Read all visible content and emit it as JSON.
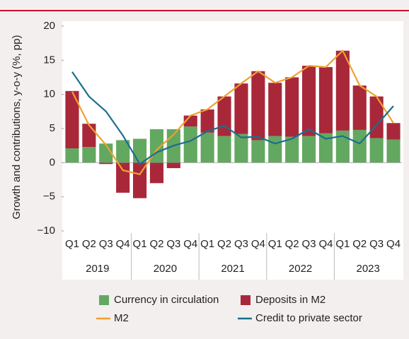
{
  "chart_data": {
    "type": "stacked-bar-line",
    "ylabel": "Growth and contributions, y-o-y (%, pp)",
    "categories": [
      "Q1",
      "Q2",
      "Q3",
      "Q4",
      "Q1",
      "Q2",
      "Q3",
      "Q4",
      "Q1",
      "Q2",
      "Q3",
      "Q4",
      "Q1",
      "Q2",
      "Q3",
      "Q4",
      "Q1",
      "Q2",
      "Q3",
      "Q4"
    ],
    "groups": [
      "2019",
      "2020",
      "2021",
      "2022",
      "2023"
    ],
    "series": [
      {
        "name": "Currency in circulation",
        "kind": "bar",
        "color": "#63a860",
        "values": [
          2.1,
          2.3,
          2.8,
          3.3,
          3.5,
          4.9,
          4.9,
          5.3,
          4.4,
          3.9,
          4.2,
          3.3,
          3.9,
          3.8,
          3.9,
          4.3,
          4.7,
          4.8,
          3.6,
          3.4
        ]
      },
      {
        "name": "Deposits in M2",
        "kind": "bar",
        "color": "#a8283a",
        "values": [
          8.4,
          3.4,
          -0.2,
          -4.4,
          -5.2,
          -3.0,
          -0.8,
          1.6,
          3.4,
          5.8,
          7.4,
          10.1,
          7.8,
          8.7,
          10.3,
          9.7,
          11.7,
          6.5,
          6.1,
          2.4
        ]
      },
      {
        "name": "M2",
        "kind": "line",
        "color": "#f0a030",
        "values": [
          10.4,
          5.5,
          2.6,
          -1.1,
          -1.7,
          1.9,
          4.1,
          6.9,
          7.8,
          9.7,
          11.6,
          13.4,
          11.7,
          12.5,
          14.2,
          14.0,
          16.4,
          11.3,
          9.7,
          5.8
        ]
      },
      {
        "name": "Credit to private sector",
        "kind": "line",
        "color": "#1b6e8e",
        "values": [
          13.3,
          9.7,
          7.5,
          4.0,
          -0.2,
          1.5,
          2.5,
          3.2,
          4.6,
          5.4,
          3.7,
          3.8,
          2.8,
          3.5,
          4.9,
          3.5,
          3.9,
          2.8,
          5.5,
          8.3
        ]
      }
    ],
    "ylim": [
      -10,
      20
    ],
    "yticks": [
      {
        "value": -10,
        "label": "−10"
      },
      {
        "value": -5,
        "label": "−5"
      },
      0,
      5,
      10,
      15,
      20
    ],
    "grid": false
  }
}
